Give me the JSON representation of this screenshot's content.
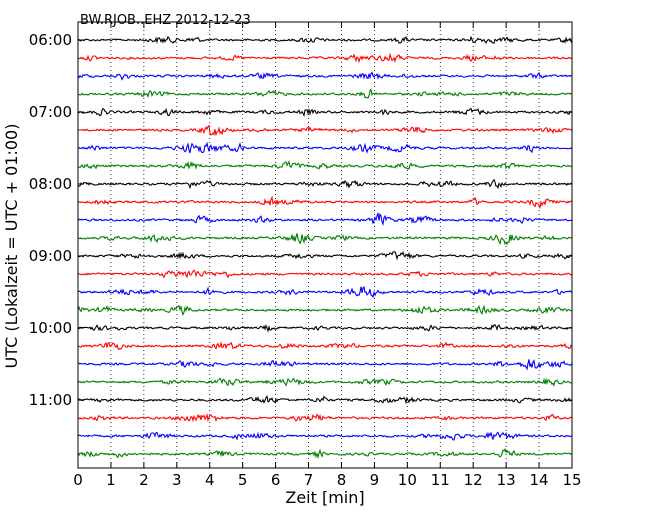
{
  "chart_data": {
    "type": "line",
    "title": "BW.RJOB..EHZ 2012-12-23",
    "xlabel": "Zeit  [min]",
    "ylabel": "UTC (Lokalzeit = UTC + 01:00)",
    "xlim": [
      0,
      15
    ],
    "x_ticks": [
      0,
      1,
      2,
      3,
      4,
      5,
      6,
      7,
      8,
      9,
      10,
      11,
      12,
      13,
      14,
      15
    ],
    "x_tick_labels": [
      "0",
      "1",
      "2",
      "3",
      "4",
      "5",
      "6",
      "7",
      "8",
      "9",
      "10",
      "11",
      "12",
      "13",
      "14",
      "15"
    ],
    "y_tick_labels": [
      "06:00",
      "07:00",
      "08:00",
      "09:00",
      "10:00",
      "11:00"
    ],
    "traces_per_label": 4,
    "trace_count": 24,
    "trace_colors": [
      "#000000",
      "#ff0000",
      "#0000ff",
      "#008000"
    ],
    "grid": "vertical dotted at each minute"
  }
}
